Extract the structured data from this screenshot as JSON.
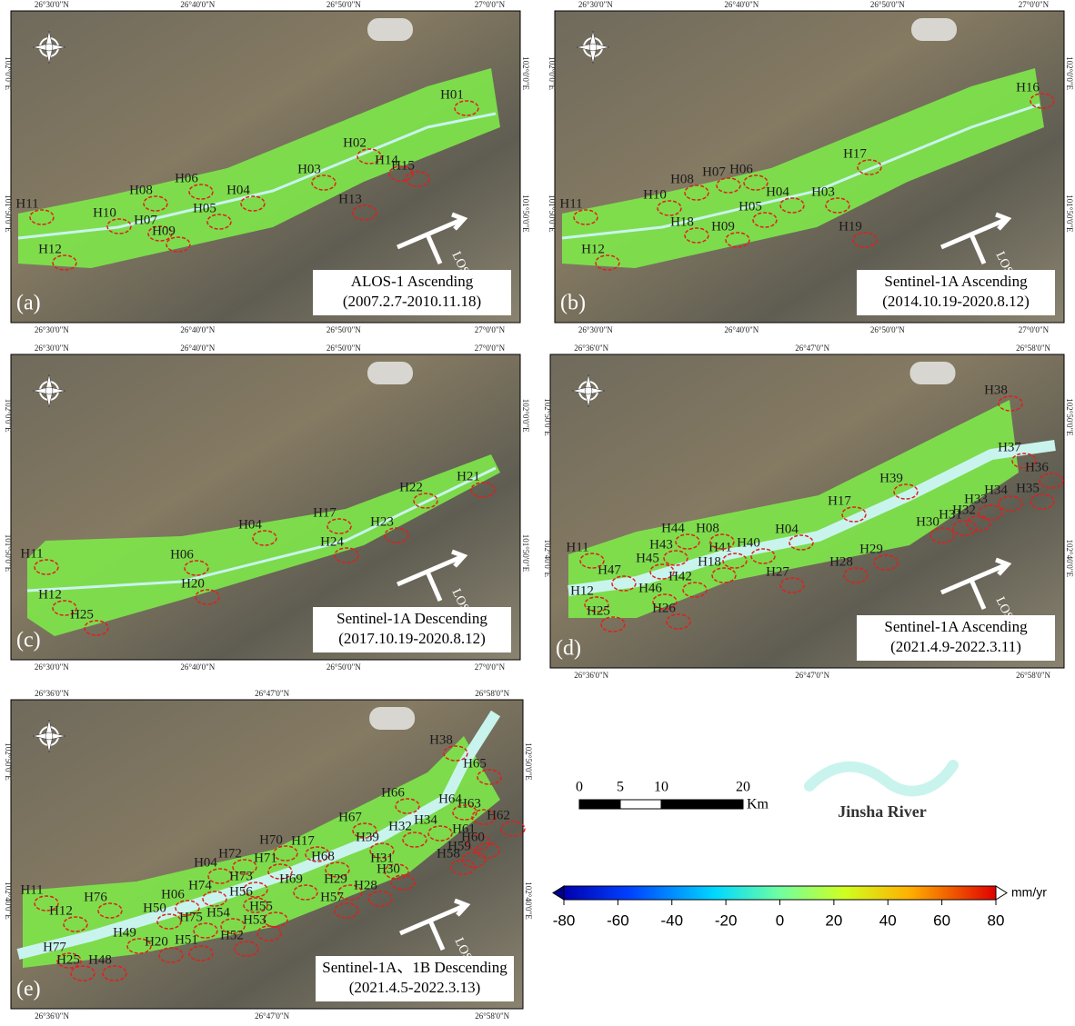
{
  "panels": [
    {
      "letter": "(a)",
      "sensor": "ALOS-1 Ascending",
      "period": "(2007.2.7-2010.11.18)",
      "los": "LOS",
      "top_ticks": [
        "26°30'0\"N",
        "26°40'0\"N",
        "26°50'0\"N",
        "27°0'0\"N"
      ],
      "bottom_ticks": [
        "26°30'0\"N",
        "26°40'0\"N",
        "26°50'0\"N",
        "27°0'0\"N"
      ],
      "side_ticks": [
        "102°0'0\"E",
        "101°50'0\"E"
      ],
      "labels": [
        "H01",
        "H02",
        "H03",
        "H14",
        "H15",
        "H13",
        "H06",
        "H08",
        "H07",
        "H05",
        "H04",
        "H10",
        "H09",
        "H11",
        "H12"
      ]
    },
    {
      "letter": "(b)",
      "sensor": "Sentinel-1A Ascending",
      "period": "(2014.10.19-2020.8.12)",
      "los": "LOS",
      "top_ticks": [
        "26°30'0\"N",
        "26°40'0\"N",
        "26°50'0\"N",
        "27°0'0\"N"
      ],
      "bottom_ticks": [
        "26°30'0\"N",
        "26°40'0\"N",
        "26°50'0\"N",
        "27°0'0\"N"
      ],
      "side_ticks": [
        "102°0'0\"E",
        "101°50'0\"E"
      ],
      "labels": [
        "H16",
        "H17",
        "H08",
        "H07",
        "H06",
        "H10",
        "H04",
        "H03",
        "H18",
        "H09",
        "H05",
        "H19",
        "H11",
        "H12"
      ]
    },
    {
      "letter": "(c)",
      "sensor": "Sentinel-1A Descending",
      "period": "(2017.10.19-2020.8.12)",
      "los": "LOS",
      "top_ticks": [
        "26°30'0\"N",
        "26°40'0\"N",
        "26°50'0\"N",
        "27°0'0\"N"
      ],
      "bottom_ticks": [
        "26°30'0\"N",
        "26°40'0\"N",
        "26°50'0\"N",
        "27°0'0\"N"
      ],
      "side_ticks": [
        "102°0'0\"E",
        "101°50'0\"E"
      ],
      "labels": [
        "H21",
        "H22",
        "H17",
        "H04",
        "H23",
        "H24",
        "H06",
        "H20",
        "H11",
        "H12",
        "H25"
      ]
    },
    {
      "letter": "(d)",
      "sensor": "Sentinel-1A Ascending",
      "period": "(2021.4.9-2022.3.11)",
      "los": "LOS",
      "top_ticks": [
        "26°36'0\"N",
        "26°47'0\"N",
        "26°58'0\"N"
      ],
      "bottom_ticks": [
        "26°36'0\"N",
        "26°47'0\"N",
        "26°58'0\"N"
      ],
      "side_ticks": [
        "102°50'0\"E",
        "102°40'0\"E"
      ],
      "labels": [
        "H38",
        "H37",
        "H36",
        "H35",
        "H34",
        "H33",
        "H32",
        "H31",
        "H30",
        "H39",
        "H17",
        "H04",
        "H29",
        "H28",
        "H40",
        "H41",
        "H27",
        "H08",
        "H44",
        "H43",
        "H18",
        "H45",
        "H42",
        "H46",
        "H47",
        "H11",
        "H12",
        "H25",
        "H26"
      ]
    },
    {
      "letter": "(e)",
      "sensor": "Sentinel-1A、1B Descending",
      "period": "(2021.4.5-2022.3.13)",
      "los": "LOS",
      "top_ticks": [
        "26°36'0\"N",
        "26°47'0\"N",
        "26°58'0\"N"
      ],
      "bottom_ticks": [
        "26°36'0\"N",
        "26°47'0\"N",
        "26°58'0\"N"
      ],
      "side_ticks": [
        "102°50'0\"E",
        "102°40'0\"E"
      ],
      "labels": [
        "H38",
        "H65",
        "H66",
        "H63",
        "H64",
        "H62",
        "H67",
        "H34",
        "H61",
        "H60",
        "H59",
        "H58",
        "H32",
        "H39",
        "H17",
        "H70",
        "H71",
        "H68",
        "H72",
        "H04",
        "H73",
        "H69",
        "H29",
        "H28",
        "H31",
        "H30",
        "H57",
        "H74",
        "H56",
        "H06",
        "H76",
        "H50",
        "H75",
        "H54",
        "H55",
        "H53",
        "H52",
        "H11",
        "H12",
        "H49",
        "H20",
        "H51",
        "H77",
        "H25",
        "H48"
      ]
    }
  ],
  "scale_bar": {
    "ticks": [
      0,
      5,
      10,
      20
    ],
    "unit": "Km"
  },
  "river_legend": "Jinsha River",
  "colorbar": {
    "lim": [
      -80,
      80
    ],
    "ticks": [
      -80,
      -60,
      -40,
      -20,
      0,
      20,
      40,
      60,
      80
    ],
    "unit": "mm/yr"
  }
}
